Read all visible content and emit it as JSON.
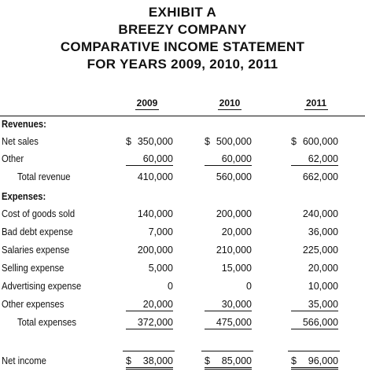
{
  "title": {
    "line1": "EXHIBIT A",
    "line2": "BREEZY COMPANY",
    "line3": "COMPARATIVE INCOME STATEMENT",
    "line4": "FOR YEARS 2009, 2010, 2011"
  },
  "columns": [
    "2009",
    "2010",
    "2011"
  ],
  "sections": {
    "revenues_label": "Revenues:",
    "expenses_label": "Expenses:"
  },
  "rows": {
    "net_sales": {
      "label": "Net sales",
      "currency": "$",
      "values": [
        "350,000",
        "500,000",
        "600,000"
      ]
    },
    "other": {
      "label": "Other",
      "values": [
        "60,000",
        "60,000",
        "62,000"
      ]
    },
    "total_revenue": {
      "label": "Total revenue",
      "values": [
        "410,000",
        "560,000",
        "662,000"
      ]
    },
    "cogs": {
      "label": "Cost of goods sold",
      "values": [
        "140,000",
        "200,000",
        "240,000"
      ]
    },
    "bad_debt": {
      "label": "Bad debt expense",
      "values": [
        "7,000",
        "20,000",
        "36,000"
      ]
    },
    "salaries": {
      "label": "Salaries expense",
      "values": [
        "200,000",
        "210,000",
        "225,000"
      ]
    },
    "selling": {
      "label": "Selling expense",
      "values": [
        "5,000",
        "15,000",
        "20,000"
      ]
    },
    "advertising": {
      "label": "Advertising expense",
      "values": [
        "0",
        "0",
        "10,000"
      ]
    },
    "other_expenses": {
      "label": "Other expenses",
      "values": [
        "20,000",
        "30,000",
        "35,000"
      ]
    },
    "total_expenses": {
      "label": "Total expenses",
      "values": [
        "372,000",
        "475,000",
        "566,000"
      ]
    },
    "net_income": {
      "label": "Net income",
      "currency": "$",
      "values": [
        "38,000",
        "85,000",
        "96,000"
      ]
    }
  }
}
